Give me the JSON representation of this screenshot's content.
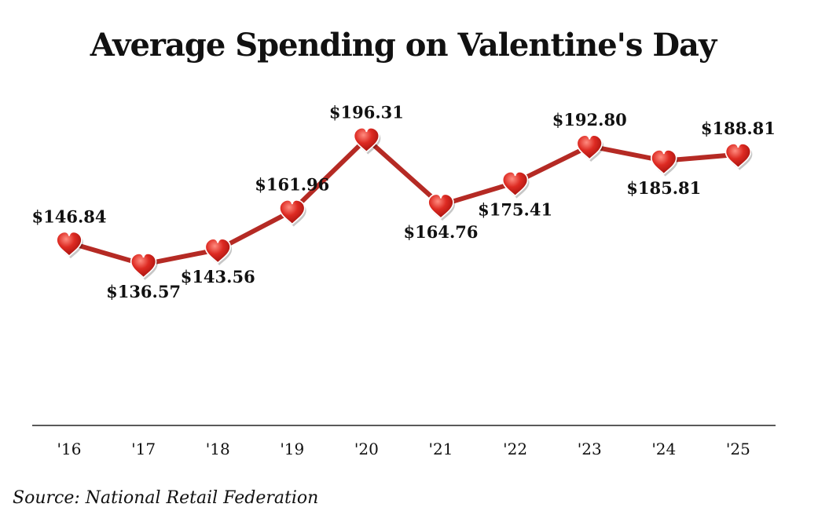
{
  "chart_data": {
    "type": "line",
    "title": "Average Spending on Valentine's Day",
    "categories": [
      "'16",
      "'17",
      "'18",
      "'19",
      "'20",
      "'21",
      "'22",
      "'23",
      "'24",
      "'25"
    ],
    "series": [
      {
        "name": "Average Spending",
        "values": [
          146.84,
          136.57,
          143.56,
          161.96,
          196.31,
          164.76,
          175.41,
          192.8,
          185.81,
          188.81
        ],
        "labels": [
          "$146.84",
          "$136.57",
          "$143.56",
          "$161.96",
          "$196.31",
          "$164.76",
          "$175.41",
          "$192.80",
          "$185.81",
          "$188.81"
        ],
        "label_positions": [
          "above",
          "below",
          "below",
          "above",
          "above",
          "below",
          "below",
          "above",
          "below",
          "above"
        ]
      }
    ],
    "xlabel": "",
    "ylabel": "",
    "ylim": [
      60,
      210
    ],
    "grid": false,
    "legend": "none",
    "marker": "heart-icon",
    "line_color": "#b52a24",
    "marker_color": "#c8201f"
  },
  "source": "Source: National Retail Federation"
}
